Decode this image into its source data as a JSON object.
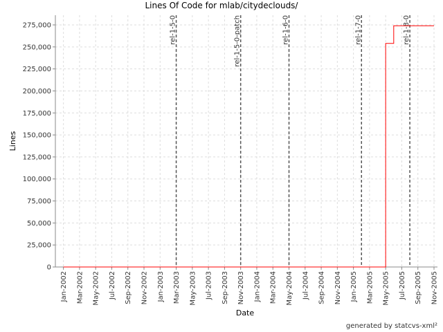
{
  "chart_data": {
    "type": "line",
    "step": true,
    "title": "Lines Of Code for mlab/citydeclouds/",
    "x_label": "Date",
    "y_label": "Lines",
    "footer": "generated by statcvs-xml²",
    "x": [
      "2002-01",
      "2005-05",
      "2005-06",
      "2005-11"
    ],
    "series": [
      {
        "name": "Lines",
        "color": "#ff0000",
        "values": [
          0,
          254000,
          274000,
          274000
        ]
      }
    ],
    "xlim": [
      "2001-12",
      "2005-11"
    ],
    "xticks": [
      {
        "value": "2002-01",
        "label": "Jan-2002"
      },
      {
        "value": "2002-03",
        "label": "Mar-2002"
      },
      {
        "value": "2002-05",
        "label": "May-2002"
      },
      {
        "value": "2002-07",
        "label": "Jul-2002"
      },
      {
        "value": "2002-09",
        "label": "Sep-2002"
      },
      {
        "value": "2002-11",
        "label": "Nov-2002"
      },
      {
        "value": "2003-01",
        "label": "Jan-2003"
      },
      {
        "value": "2003-03",
        "label": "Mar-2003"
      },
      {
        "value": "2003-05",
        "label": "May-2003"
      },
      {
        "value": "2003-07",
        "label": "Jul-2003"
      },
      {
        "value": "2003-09",
        "label": "Sep-2003"
      },
      {
        "value": "2003-11",
        "label": "Nov-2003"
      },
      {
        "value": "2004-01",
        "label": "Jan-2004"
      },
      {
        "value": "2004-03",
        "label": "Mar-2004"
      },
      {
        "value": "2004-05",
        "label": "May-2004"
      },
      {
        "value": "2004-07",
        "label": "Jul-2004"
      },
      {
        "value": "2004-09",
        "label": "Sep-2004"
      },
      {
        "value": "2004-11",
        "label": "Nov-2004"
      },
      {
        "value": "2005-01",
        "label": "Jan-2005"
      },
      {
        "value": "2005-03",
        "label": "Mar-2005"
      },
      {
        "value": "2005-05",
        "label": "May-2005"
      },
      {
        "value": "2005-07",
        "label": "Jul-2005"
      },
      {
        "value": "2005-09",
        "label": "Sep-2005"
      },
      {
        "value": "2005-11",
        "label": "Nov-2005"
      }
    ],
    "ylim": [
      0,
      286000
    ],
    "yticks": [
      0,
      {
        "value": 25000,
        "label": "25,000"
      },
      {
        "value": 50000,
        "label": "50,000"
      },
      {
        "value": 75000,
        "label": "75,000"
      },
      {
        "value": 100000,
        "label": "100,000"
      },
      {
        "value": 125000,
        "label": "125,000"
      },
      {
        "value": 150000,
        "label": "150,000"
      },
      {
        "value": 175000,
        "label": "175,000"
      },
      {
        "value": 200000,
        "label": "200,000"
      },
      {
        "value": 225000,
        "label": "225,000"
      },
      {
        "value": 250000,
        "label": "250,000"
      },
      {
        "value": 275000,
        "label": "275,000"
      }
    ],
    "grid": true,
    "markers": [
      {
        "label": "rel-1-5-0",
        "x": "2003-03"
      },
      {
        "label": "rel-1-5-0-patch",
        "x": "2003-11"
      },
      {
        "label": "rel-1-6-0",
        "x": "2004-05"
      },
      {
        "label": "rel-1-7-0",
        "x": "2005-02"
      },
      {
        "label": "rel-1-8-0",
        "x": "2005-08"
      }
    ]
  }
}
